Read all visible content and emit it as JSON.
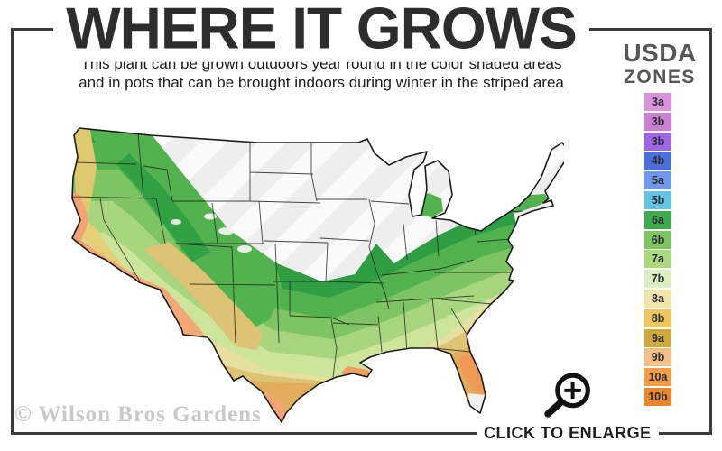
{
  "header": {
    "title": "WHERE IT GROWS",
    "subtitle_line1": "This plant can be grown outdoors year round in the color shaded areas",
    "subtitle_line2": "and in pots that can be brought indoors during winter in the striped area"
  },
  "legend": {
    "title_line1": "USDA",
    "title_line2": "ZONES",
    "zones": [
      {
        "label": "3a",
        "color": "#d893da"
      },
      {
        "label": "3b",
        "color": "#c97fd2"
      },
      {
        "label": "3b",
        "color": "#9d66e3"
      },
      {
        "label": "4b",
        "color": "#4c6ed9"
      },
      {
        "label": "5a",
        "color": "#7197ea"
      },
      {
        "label": "5b",
        "color": "#64c4e0"
      },
      {
        "label": "6a",
        "color": "#3fa94d"
      },
      {
        "label": "6b",
        "color": "#7ec462"
      },
      {
        "label": "7a",
        "color": "#a9d87f"
      },
      {
        "label": "7b",
        "color": "#d9efc0"
      },
      {
        "label": "8a",
        "color": "#f1e5ac"
      },
      {
        "label": "8b",
        "color": "#ebc75d"
      },
      {
        "label": "9a",
        "color": "#d0a93e"
      },
      {
        "label": "9b",
        "color": "#f5bf8a"
      },
      {
        "label": "10a",
        "color": "#f39d4a"
      },
      {
        "label": "10b",
        "color": "#eb862f"
      }
    ]
  },
  "map": {
    "name": "usda-zones-united-states-map",
    "colors": {
      "base_gray": "#eeeeee",
      "stripe": "#fafafa",
      "outline": "#1b1b1b",
      "state_line": "#242424",
      "dark_green": "#2f9e43",
      "green": "#52b24d",
      "mid_green": "#7ec463",
      "light_green": "#a8d67e",
      "pale_green": "#cde59a",
      "pale_yellow": "#e6dfa0",
      "tan": "#ddc373",
      "gold": "#e3ae5b",
      "salmon": "#f2a474",
      "desert_salmon": "#f3a877",
      "coast_yellow": "#dfc96f",
      "valley_yellow": "#e6cf79",
      "fl_orange": "#f09a56",
      "delta_orange": "#eda05f",
      "white_patch": "#f2f2f2",
      "lake": "#ffffff"
    }
  },
  "footer": {
    "watermark": "© Wilson Bros Gardens",
    "enlarge_label": "CLICK TO ENLARGE"
  }
}
